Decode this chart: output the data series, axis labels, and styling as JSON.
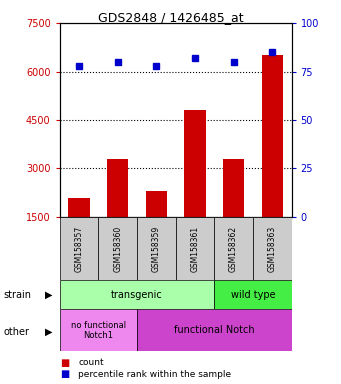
{
  "title": "GDS2848 / 1426485_at",
  "samples": [
    "GSM158357",
    "GSM158360",
    "GSM158359",
    "GSM158361",
    "GSM158362",
    "GSM158363"
  ],
  "counts": [
    2100,
    3300,
    2300,
    4800,
    3300,
    6500
  ],
  "percentiles": [
    78,
    80,
    78,
    82,
    80,
    85
  ],
  "ylim_left": [
    1500,
    7500
  ],
  "ylim_right": [
    0,
    100
  ],
  "yticks_left": [
    1500,
    3000,
    4500,
    6000,
    7500
  ],
  "yticks_right": [
    0,
    25,
    50,
    75,
    100
  ],
  "bar_color": "#cc0000",
  "dot_color": "#0000cc",
  "strain_transgenic_label": "transgenic",
  "strain_wildtype_label": "wild type",
  "other_nofunc_label": "no functional\nNotch1",
  "other_func_label": "functional Notch",
  "strain_color_transgenic": "#aaffaa",
  "strain_color_wildtype": "#44ee44",
  "other_color_nofunc": "#ee88ee",
  "other_color_func": "#cc44cc",
  "legend_count_label": "count",
  "legend_pct_label": "percentile rank within the sample",
  "bg_color": "#cccccc",
  "bar_bottom": 1500,
  "pct_scale_min": 0,
  "pct_scale_max": 100
}
